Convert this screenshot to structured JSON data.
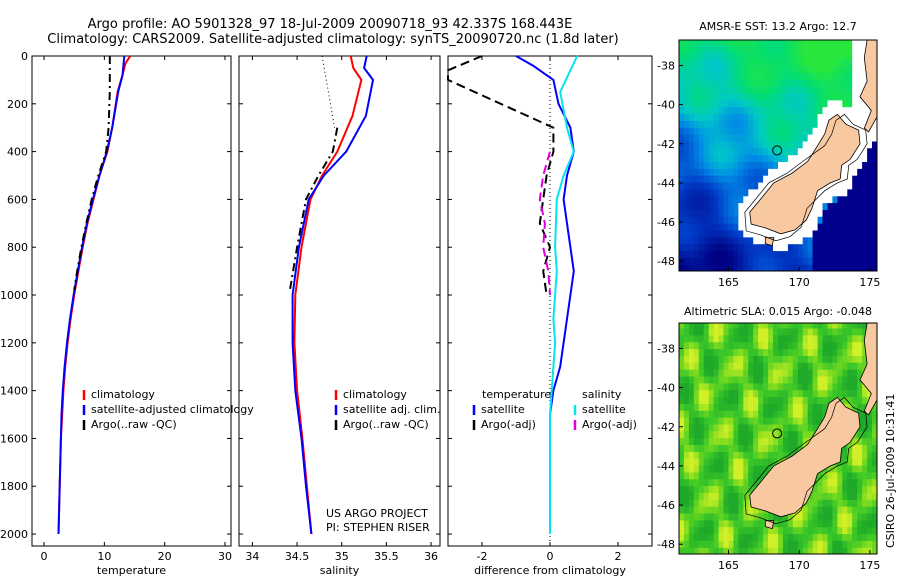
{
  "title": {
    "line1": "Argo profile: AO 5901328_97 18-Jul-2009 20090718_93 42.337S 168.443E",
    "line2": "Climatology: CARS2009. Satellite-adjusted climatology: synTS_20090720.nc (1.8d later)"
  },
  "credits": {
    "project": "US ARGO PROJECT",
    "pi": "PI: STEPHEN RISER",
    "stamp": "CSIRO 26-Jul-2009 10:31:41"
  },
  "colors": {
    "climatology": "#ff0000",
    "satellite": "#0000ff",
    "argo": "#000000",
    "sal_satellite": "#00e5ee",
    "sal_argo": "#dd00dd",
    "land": "#f8c8a0"
  },
  "chart_data": [
    {
      "type": "line",
      "id": "temperature",
      "xlabel": "temperature",
      "xlim": [
        -2,
        31
      ],
      "ylim": [
        2050,
        0
      ],
      "xticks": [
        0,
        10,
        20,
        30
      ],
      "yticks": [
        0,
        200,
        400,
        600,
        800,
        1000,
        1200,
        1400,
        1600,
        1800,
        2000
      ],
      "legend": [
        "climatology",
        "satellite-adjusted climatology",
        "Argo(..raw -QC)"
      ],
      "series": [
        {
          "name": "climatology",
          "color": "#ff0000",
          "dash": "",
          "points": [
            [
              14.3,
              0
            ],
            [
              13.5,
              30
            ],
            [
              13.0,
              80
            ],
            [
              12.2,
              150
            ],
            [
              11.3,
              300
            ],
            [
              10.5,
              400
            ],
            [
              9.2,
              500
            ],
            [
              8.2,
              600
            ],
            [
              7.2,
              700
            ],
            [
              6.4,
              800
            ],
            [
              5.7,
              900
            ],
            [
              5.0,
              1000
            ],
            [
              4.4,
              1100
            ],
            [
              3.9,
              1200
            ],
            [
              3.5,
              1300
            ],
            [
              3.2,
              1400
            ],
            [
              3.0,
              1500
            ],
            [
              2.8,
              1600
            ],
            [
              2.7,
              1700
            ],
            [
              2.6,
              1800
            ],
            [
              2.5,
              1900
            ],
            [
              2.4,
              2000
            ]
          ]
        },
        {
          "name": "satellite-adjusted climatology",
          "color": "#0000ff",
          "dash": "",
          "points": [
            [
              13.3,
              0
            ],
            [
              13.0,
              80
            ],
            [
              12.3,
              150
            ],
            [
              11.3,
              300
            ],
            [
              10.4,
              400
            ],
            [
              9.2,
              500
            ],
            [
              8.1,
              600
            ],
            [
              7.1,
              700
            ],
            [
              6.3,
              800
            ],
            [
              5.6,
              900
            ],
            [
              4.9,
              1000
            ],
            [
              4.3,
              1100
            ],
            [
              3.8,
              1200
            ],
            [
              3.4,
              1300
            ],
            [
              3.1,
              1400
            ],
            [
              2.9,
              1500
            ],
            [
              2.8,
              1600
            ],
            [
              2.7,
              1700
            ],
            [
              2.6,
              1800
            ],
            [
              2.5,
              1900
            ],
            [
              2.4,
              2000
            ]
          ]
        },
        {
          "name": "Argo(..raw -QC)",
          "color": "#000000",
          "dash": "8,4,2,4",
          "points": [
            [
              10.9,
              0
            ],
            [
              10.9,
              150
            ],
            [
              10.7,
              300
            ],
            [
              10.3,
              400
            ],
            [
              9.0,
              500
            ],
            [
              7.9,
              600
            ],
            [
              7.0,
              700
            ],
            [
              6.2,
              800
            ],
            [
              5.5,
              900
            ],
            [
              5.0,
              980
            ]
          ]
        }
      ]
    },
    {
      "type": "line",
      "id": "salinity",
      "xlabel": "salinity",
      "xlim": [
        33.85,
        36.1
      ],
      "ylim": [
        2050,
        0
      ],
      "xticks": [
        34,
        34.5,
        35,
        35.5,
        36
      ],
      "legend": [
        "climatology",
        "satellite adj. clim.",
        "Argo(..raw -QC)"
      ],
      "series": [
        {
          "name": "climatology",
          "color": "#ff0000",
          "dash": "",
          "points": [
            [
              35.1,
              0
            ],
            [
              35.13,
              50
            ],
            [
              35.22,
              100
            ],
            [
              35.12,
              250
            ],
            [
              34.95,
              400
            ],
            [
              34.78,
              500
            ],
            [
              34.65,
              600
            ],
            [
              34.55,
              800
            ],
            [
              34.48,
              1000
            ],
            [
              34.47,
              1200
            ],
            [
              34.5,
              1400
            ],
            [
              34.56,
              1600
            ],
            [
              34.61,
              1800
            ],
            [
              34.66,
              2000
            ]
          ]
        },
        {
          "name": "satellite adj. clim.",
          "color": "#0000ff",
          "dash": "",
          "points": [
            [
              35.28,
              0
            ],
            [
              35.25,
              50
            ],
            [
              35.35,
              100
            ],
            [
              35.27,
              250
            ],
            [
              35.05,
              400
            ],
            [
              34.8,
              500
            ],
            [
              34.63,
              600
            ],
            [
              34.52,
              800
            ],
            [
              34.45,
              1000
            ],
            [
              34.45,
              1200
            ],
            [
              34.48,
              1400
            ],
            [
              34.55,
              1600
            ],
            [
              34.6,
              1800
            ],
            [
              34.66,
              2000
            ]
          ]
        },
        {
          "name": "Argo(..raw -QC)",
          "color": "#000000",
          "dash": "8,4,2,4",
          "points": [
            [
              34.95,
              300
            ],
            [
              34.9,
              400
            ],
            [
              34.74,
              500
            ],
            [
              34.6,
              600
            ],
            [
              34.5,
              800
            ],
            [
              34.42,
              980
            ]
          ]
        },
        {
          "name": "",
          "color": "#000000",
          "dash": "1,3",
          "points": [
            [
              34.78,
              0
            ],
            [
              34.92,
              300
            ]
          ]
        }
      ]
    },
    {
      "type": "line",
      "id": "difference",
      "xlabel": "difference from climatology",
      "xlim": [
        -3,
        3
      ],
      "ylim": [
        2050,
        0
      ],
      "xticks": [
        -2,
        0,
        2
      ],
      "legend_left": {
        "heading": "temperature",
        "items": [
          "satellite",
          "Argo(-adj)"
        ]
      },
      "legend_right": {
        "heading": "salinity",
        "items": [
          "satellite",
          "Argo(-adj)"
        ]
      },
      "series": [
        {
          "name": "temperature satellite",
          "color": "#0000ff",
          "dash": "",
          "points": [
            [
              -1.0,
              0
            ],
            [
              -0.5,
              40
            ],
            [
              0.1,
              100
            ],
            [
              0.25,
              200
            ],
            [
              0.6,
              300
            ],
            [
              0.7,
              400
            ],
            [
              0.5,
              500
            ],
            [
              0.4,
              600
            ],
            [
              0.5,
              700
            ],
            [
              0.6,
              800
            ],
            [
              0.7,
              900
            ],
            [
              0.6,
              1000
            ],
            [
              0.5,
              1100
            ],
            [
              0.4,
              1200
            ],
            [
              0.3,
              1300
            ],
            [
              0.1,
              1400
            ],
            [
              0,
              1500
            ],
            [
              0,
              2000
            ]
          ]
        },
        {
          "name": "temperature Argo(-adj)",
          "color": "#000000",
          "dash": "9,5",
          "points": [
            [
              -2.0,
              0
            ],
            [
              -3.0,
              60
            ],
            [
              -3.0,
              100
            ],
            [
              0.1,
              300
            ],
            [
              0.1,
              400
            ],
            [
              -0.1,
              500
            ],
            [
              -0.2,
              600
            ],
            [
              -0.3,
              700
            ],
            [
              0,
              800
            ],
            [
              -0.2,
              900
            ],
            [
              -0.1,
              1000
            ]
          ]
        },
        {
          "name": "salinity satellite",
          "color": "#00e5ee",
          "dash": "",
          "points": [
            [
              0.8,
              0
            ],
            [
              0.6,
              60
            ],
            [
              0.3,
              150
            ],
            [
              0.5,
              300
            ],
            [
              0.7,
              400
            ],
            [
              0.4,
              500
            ],
            [
              0.2,
              600
            ],
            [
              0.15,
              800
            ],
            [
              0.2,
              900
            ],
            [
              0.1,
              1100
            ],
            [
              0.15,
              1200
            ],
            [
              0.1,
              1300
            ],
            [
              0.05,
              1400
            ],
            [
              0,
              1500
            ],
            [
              0,
              2000
            ]
          ]
        },
        {
          "name": "salinity Argo(-adj)",
          "color": "#dd00dd",
          "dash": "9,5",
          "points": [
            [
              0,
              400
            ],
            [
              -0.2,
              500
            ],
            [
              -0.3,
              600
            ],
            [
              -0.15,
              700
            ],
            [
              -0.2,
              800
            ],
            [
              -0.05,
              900
            ],
            [
              0,
              1000
            ]
          ]
        }
      ]
    }
  ],
  "maps": [
    {
      "id": "sst",
      "title": "AMSR-E SST: 13.2 Argo: 12.7",
      "type": "heatmap",
      "xlim": [
        161.5,
        175.5
      ],
      "ylim": [
        -48.5,
        -36.7
      ],
      "xticks": [
        165,
        170,
        175
      ],
      "yticks": [
        -38,
        -40,
        -42,
        -44,
        -46,
        -48
      ],
      "marker": [
        168.44,
        -42.34
      ]
    },
    {
      "id": "sla",
      "title": "Altimetric SLA: 0.015 Argo: -0.048",
      "type": "heatmap",
      "xlim": [
        161.5,
        175.5
      ],
      "ylim": [
        -48.5,
        -36.7
      ],
      "xticks": [
        165,
        170,
        175
      ],
      "yticks": [
        -38,
        -40,
        -42,
        -44,
        -46,
        -48
      ],
      "marker": [
        168.44,
        -42.34
      ]
    }
  ]
}
